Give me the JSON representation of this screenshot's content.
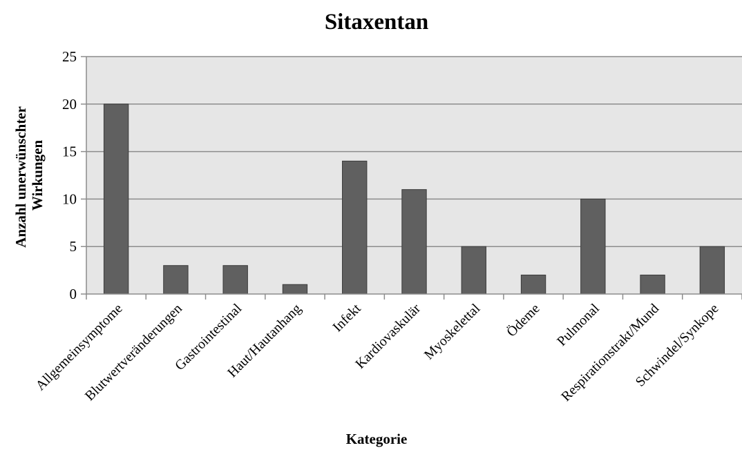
{
  "chart_data": {
    "type": "bar",
    "title": "Sitaxentan",
    "xlabel": "Kategorie",
    "ylabel": [
      "Anzahl unerwünschter",
      "Wirkungen"
    ],
    "categories": [
      "Allgemeinsymptome",
      "Blutwertveränderungen",
      "Gastrointestinal",
      "Haut/Hautanhang",
      "Infekt",
      "Kardiovaskulär",
      "Myoskelettal",
      "Ödeme",
      "Pulmonal",
      "Respirationstrakt/Mund",
      "Schwindel/Synkope"
    ],
    "values": [
      20,
      3,
      3,
      1,
      14,
      11,
      5,
      2,
      10,
      2,
      5
    ],
    "ylim": [
      0,
      25
    ],
    "yticks": [
      0,
      5,
      10,
      15,
      20,
      25
    ],
    "grid": true,
    "legend": "none",
    "colors": {
      "bar": "#606060",
      "bar_stroke": "#3a3a3a",
      "plot_bg": "#e6e6e6",
      "grid": "#8c8c8c",
      "axis": "#8c8c8c"
    }
  }
}
